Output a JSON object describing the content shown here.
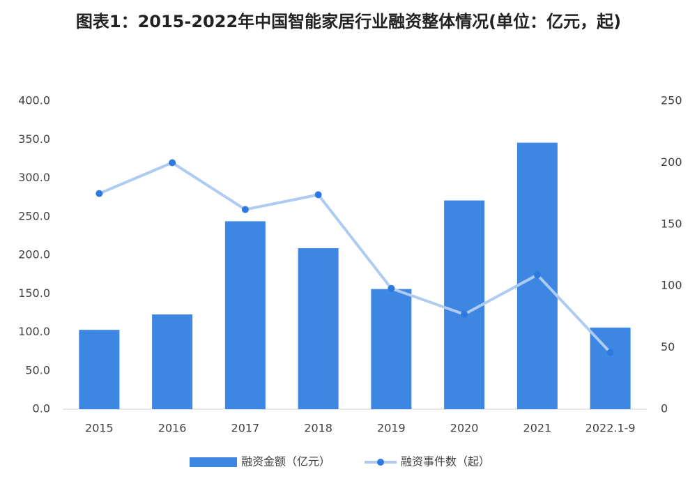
{
  "chart_data": {
    "type": "combo",
    "title": "图表1：2015-2022年中国智能家居行业融资整体情况(单位：亿元，起)",
    "categories": [
      "2015",
      "2016",
      "2017",
      "2018",
      "2019",
      "2020",
      "2021",
      "2022.1-9"
    ],
    "series": [
      {
        "name": "融资金额（亿元）",
        "type": "bar",
        "color": "#3d86e1",
        "values": [
          103,
          123,
          244,
          209,
          156,
          271,
          346,
          106
        ]
      },
      {
        "name": "融资事件数（起）",
        "type": "line",
        "axis": "y2",
        "color": "#aecbf2",
        "marker_color": "#2d79e0",
        "values": [
          175,
          200,
          162,
          174,
          98,
          77,
          109,
          46
        ]
      }
    ],
    "ylim": [
      0,
      400
    ],
    "yticks": [
      {
        "value": 0,
        "label": "0.0"
      },
      {
        "value": 50,
        "label": "50.0"
      },
      {
        "value": 100,
        "label": "100.0"
      },
      {
        "value": 150,
        "label": "150.0"
      },
      {
        "value": 200,
        "label": "200.0"
      },
      {
        "value": 250,
        "label": "250.0"
      },
      {
        "value": 300,
        "label": "300.0"
      },
      {
        "value": 350,
        "label": "350.0"
      },
      {
        "value": 400,
        "label": "400.0"
      }
    ],
    "y2lim": [
      0,
      250
    ],
    "y2ticks": [
      0,
      50,
      100,
      150,
      200,
      250
    ],
    "grid": false,
    "legend": "bottom"
  }
}
